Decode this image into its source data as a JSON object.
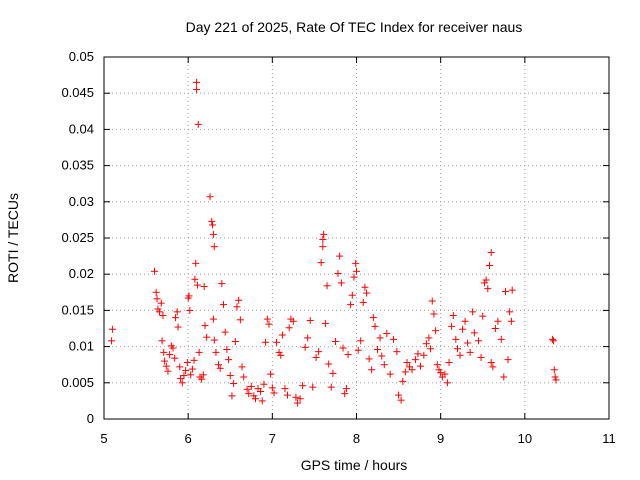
{
  "chart_data": {
    "type": "scatter",
    "title": "Day 221 of 2025, Rate Of TEC Index for receiver naus",
    "xlabel": "GPS time / hours",
    "ylabel": "ROTI / TECUs",
    "xlim": [
      5,
      11
    ],
    "ylim": [
      0,
      0.05
    ],
    "x_ticks": [
      "5",
      "6",
      "7",
      "8",
      "9",
      "10",
      "11"
    ],
    "y_ticks": [
      "0",
      "0.005",
      "0.01",
      "0.015",
      "0.02",
      "0.025",
      "0.03",
      "0.035",
      "0.04",
      "0.045",
      "0.05"
    ],
    "grid": true,
    "marker": "+",
    "series_color": "#ff0000",
    "points": [
      [
        5.1,
        0.0124
      ],
      [
        5.09,
        0.0108
      ],
      [
        5.6,
        0.0204
      ],
      [
        5.62,
        0.0175
      ],
      [
        5.63,
        0.0166
      ],
      [
        5.64,
        0.0152
      ],
      [
        5.66,
        0.0148
      ],
      [
        5.68,
        0.016
      ],
      [
        5.7,
        0.0143
      ],
      [
        5.69,
        0.0108
      ],
      [
        5.71,
        0.0092
      ],
      [
        5.72,
        0.008
      ],
      [
        5.74,
        0.0073
      ],
      [
        5.76,
        0.0066
      ],
      [
        5.78,
        0.0089
      ],
      [
        5.8,
        0.0101
      ],
      [
        5.82,
        0.0098
      ],
      [
        5.84,
        0.0084
      ],
      [
        5.85,
        0.014
      ],
      [
        5.87,
        0.0148
      ],
      [
        5.88,
        0.0127
      ],
      [
        5.9,
        0.0072
      ],
      [
        5.91,
        0.0056
      ],
      [
        5.93,
        0.005
      ],
      [
        5.95,
        0.006
      ],
      [
        5.97,
        0.0067
      ],
      [
        5.99,
        0.0078
      ],
      [
        6.0,
        0.0167
      ],
      [
        6.01,
        0.017
      ],
      [
        6.02,
        0.015
      ],
      [
        6.03,
        0.0061
      ],
      [
        6.05,
        0.0069
      ],
      [
        6.07,
        0.0081
      ],
      [
        6.08,
        0.0193
      ],
      [
        6.09,
        0.0215
      ],
      [
        6.1,
        0.0465
      ],
      [
        6.1,
        0.0455
      ],
      [
        6.12,
        0.0407
      ],
      [
        6.11,
        0.0185
      ],
      [
        6.13,
        0.0092
      ],
      [
        6.14,
        0.0058
      ],
      [
        6.16,
        0.0055
      ],
      [
        6.18,
        0.0061
      ],
      [
        6.19,
        0.0183
      ],
      [
        6.2,
        0.0129
      ],
      [
        6.22,
        0.0113
      ],
      [
        6.26,
        0.0307
      ],
      [
        6.28,
        0.0273
      ],
      [
        6.29,
        0.0268
      ],
      [
        6.3,
        0.0255
      ],
      [
        6.31,
        0.0238
      ],
      [
        6.3,
        0.0138
      ],
      [
        6.31,
        0.0109
      ],
      [
        6.33,
        0.0092
      ],
      [
        6.36,
        0.0075
      ],
      [
        6.38,
        0.007
      ],
      [
        6.4,
        0.0187
      ],
      [
        6.42,
        0.0158
      ],
      [
        6.44,
        0.012
      ],
      [
        6.46,
        0.0096
      ],
      [
        6.48,
        0.0082
      ],
      [
        6.5,
        0.006
      ],
      [
        6.52,
        0.0032
      ],
      [
        6.54,
        0.0049
      ],
      [
        6.56,
        0.0107
      ],
      [
        6.58,
        0.0155
      ],
      [
        6.6,
        0.0164
      ],
      [
        6.62,
        0.0137
      ],
      [
        6.64,
        0.0072
      ],
      [
        6.66,
        0.0058
      ],
      [
        6.7,
        0.0041
      ],
      [
        6.72,
        0.0035
      ],
      [
        6.75,
        0.0045
      ],
      [
        6.78,
        0.0032
      ],
      [
        6.8,
        0.0028
      ],
      [
        6.83,
        0.0042
      ],
      [
        6.86,
        0.0038
      ],
      [
        6.88,
        0.0025
      ],
      [
        6.9,
        0.0048
      ],
      [
        6.92,
        0.0106
      ],
      [
        6.94,
        0.0138
      ],
      [
        6.96,
        0.0131
      ],
      [
        6.98,
        0.0062
      ],
      [
        7.0,
        0.0043
      ],
      [
        7.02,
        0.0036
      ],
      [
        7.05,
        0.0106
      ],
      [
        7.08,
        0.0092
      ],
      [
        7.1,
        0.0088
      ],
      [
        7.12,
        0.0116
      ],
      [
        7.15,
        0.0042
      ],
      [
        7.18,
        0.0033
      ],
      [
        7.2,
        0.0126
      ],
      [
        7.22,
        0.0138
      ],
      [
        7.25,
        0.0135
      ],
      [
        7.28,
        0.003
      ],
      [
        7.3,
        0.0022
      ],
      [
        7.33,
        0.0028
      ],
      [
        7.36,
        0.0046
      ],
      [
        7.39,
        0.0099
      ],
      [
        7.42,
        0.0112
      ],
      [
        7.45,
        0.0136
      ],
      [
        7.48,
        0.0044
      ],
      [
        7.52,
        0.0085
      ],
      [
        7.55,
        0.0093
      ],
      [
        7.58,
        0.0216
      ],
      [
        7.6,
        0.0238
      ],
      [
        7.6,
        0.0248
      ],
      [
        7.61,
        0.0255
      ],
      [
        7.63,
        0.0132
      ],
      [
        7.65,
        0.0184
      ],
      [
        7.67,
        0.0076
      ],
      [
        7.7,
        0.0044
      ],
      [
        7.72,
        0.0063
      ],
      [
        7.75,
        0.0107
      ],
      [
        7.78,
        0.0201
      ],
      [
        7.8,
        0.0225
      ],
      [
        7.82,
        0.0188
      ],
      [
        7.84,
        0.0098
      ],
      [
        7.86,
        0.0035
      ],
      [
        7.88,
        0.0042
      ],
      [
        7.9,
        0.0089
      ],
      [
        7.93,
        0.0158
      ],
      [
        7.95,
        0.0171
      ],
      [
        7.97,
        0.0196
      ],
      [
        7.99,
        0.0215
      ],
      [
        8.0,
        0.0204
      ],
      [
        8.02,
        0.0095
      ],
      [
        8.05,
        0.0108
      ],
      [
        8.08,
        0.0161
      ],
      [
        8.1,
        0.0182
      ],
      [
        8.12,
        0.0174
      ],
      [
        8.15,
        0.0083
      ],
      [
        8.18,
        0.0068
      ],
      [
        8.2,
        0.014
      ],
      [
        8.22,
        0.0128
      ],
      [
        8.25,
        0.0096
      ],
      [
        8.28,
        0.0112
      ],
      [
        8.3,
        0.0087
      ],
      [
        8.33,
        0.0075
      ],
      [
        8.36,
        0.0118
      ],
      [
        8.4,
        0.0062
      ],
      [
        8.44,
        0.011
      ],
      [
        8.48,
        0.0093
      ],
      [
        8.5,
        0.0033
      ],
      [
        8.53,
        0.0026
      ],
      [
        8.55,
        0.0052
      ],
      [
        8.58,
        0.0065
      ],
      [
        8.6,
        0.0078
      ],
      [
        8.63,
        0.0072
      ],
      [
        8.66,
        0.0068
      ],
      [
        8.7,
        0.0082
      ],
      [
        8.73,
        0.009
      ],
      [
        8.76,
        0.0073
      ],
      [
        8.8,
        0.0088
      ],
      [
        8.83,
        0.0104
      ],
      [
        8.86,
        0.0112
      ],
      [
        8.88,
        0.0097
      ],
      [
        8.9,
        0.0163
      ],
      [
        8.92,
        0.0145
      ],
      [
        8.94,
        0.0122
      ],
      [
        8.96,
        0.0075
      ],
      [
        8.98,
        0.0068
      ],
      [
        9.0,
        0.0064
      ],
      [
        9.02,
        0.0058
      ],
      [
        9.05,
        0.0062
      ],
      [
        9.08,
        0.005
      ],
      [
        9.1,
        0.0078
      ],
      [
        9.13,
        0.0128
      ],
      [
        9.15,
        0.0143
      ],
      [
        9.18,
        0.011
      ],
      [
        9.2,
        0.0097
      ],
      [
        9.23,
        0.0088
      ],
      [
        9.26,
        0.0124
      ],
      [
        9.29,
        0.0135
      ],
      [
        9.32,
        0.0105
      ],
      [
        9.35,
        0.0092
      ],
      [
        9.38,
        0.0148
      ],
      [
        9.4,
        0.0119
      ],
      [
        9.45,
        0.0108
      ],
      [
        9.48,
        0.0085
      ],
      [
        9.5,
        0.0142
      ],
      [
        9.52,
        0.0188
      ],
      [
        9.54,
        0.0192
      ],
      [
        9.56,
        0.018
      ],
      [
        9.58,
        0.0212
      ],
      [
        9.6,
        0.023
      ],
      [
        9.6,
        0.0078
      ],
      [
        9.62,
        0.0072
      ],
      [
        9.65,
        0.0125
      ],
      [
        9.68,
        0.0135
      ],
      [
        9.72,
        0.011
      ],
      [
        9.75,
        0.0058
      ],
      [
        9.77,
        0.0176
      ],
      [
        9.8,
        0.0082
      ],
      [
        9.82,
        0.0148
      ],
      [
        9.84,
        0.0135
      ],
      [
        9.85,
        0.0178
      ],
      [
        10.33,
        0.011
      ],
      [
        10.34,
        0.0108
      ],
      [
        10.35,
        0.0068
      ],
      [
        10.36,
        0.0058
      ],
      [
        10.37,
        0.0054
      ]
    ]
  }
}
